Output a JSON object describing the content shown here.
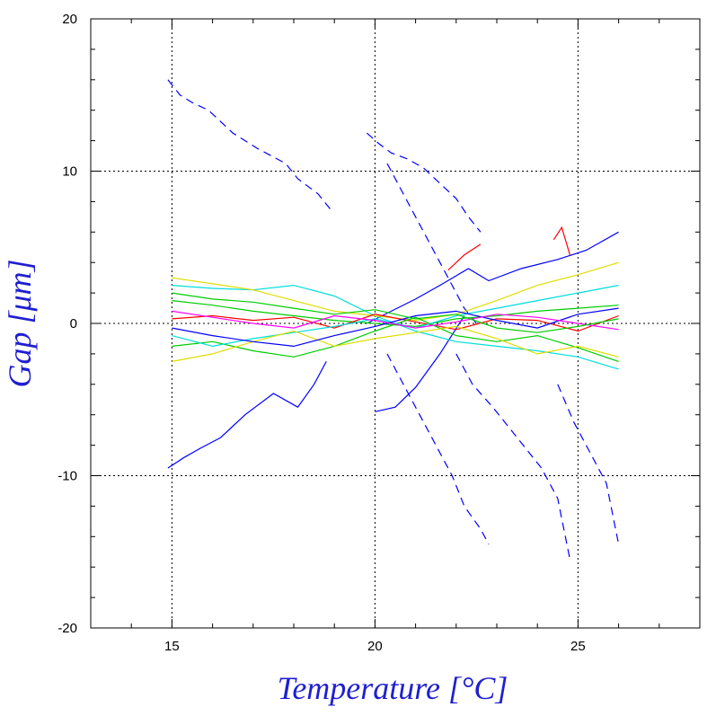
{
  "chart_data": {
    "type": "line",
    "xlabel": "Temperature [°C]",
    "ylabel": "Gap [μm]",
    "xlim": [
      13,
      28
    ],
    "ylim": [
      -20,
      20
    ],
    "x_ticks": [
      15,
      20,
      25
    ],
    "y_ticks": [
      -20,
      -10,
      0,
      10,
      20
    ],
    "x_tick_labels": [
      "15",
      "20",
      "25"
    ],
    "y_tick_labels": [
      "-20",
      "-10",
      "0",
      "10",
      "20"
    ],
    "grid": true,
    "grid_style": "dotted",
    "label_color": "#1f1fd0",
    "series_colors": [
      "#0000ff",
      "#ff0000",
      "#00cc00",
      "#00dddd",
      "#dddd00",
      "#ff00ff"
    ],
    "series": [
      {
        "color": "#0000ff",
        "style": "dashed",
        "x": [
          14.9,
          15.2,
          15.5,
          15.9,
          16.5,
          17.1,
          17.8,
          18.1,
          18.6,
          18.9
        ],
        "y": [
          16,
          15,
          14.5,
          14,
          12.5,
          11.5,
          10.5,
          9.5,
          8.5,
          7.5
        ]
      },
      {
        "color": "#0000ff",
        "style": "dashed",
        "x": [
          19.8,
          20.1,
          20.4,
          20.8,
          21.2,
          21.6,
          22.0,
          22.3,
          22.6
        ],
        "y": [
          12.5,
          11.8,
          11.2,
          10.8,
          10.2,
          9.2,
          8.2,
          7,
          6
        ]
      },
      {
        "color": "#0000ff",
        "style": "dashed",
        "x": [
          20.3,
          20.7,
          21.1,
          21.5,
          21.9,
          22.2,
          22.5
        ],
        "y": [
          10.5,
          8.5,
          6.5,
          4.5,
          2.5,
          1,
          0
        ]
      },
      {
        "color": "#0000ff",
        "style": "solid",
        "x": [
          14.9,
          15.3,
          15.7,
          16.2,
          16.8,
          17.5,
          18.1,
          18.5,
          18.8
        ],
        "y": [
          -9.5,
          -8.8,
          -8.2,
          -7.5,
          -6,
          -4.6,
          -5.5,
          -4,
          -2.5
        ]
      },
      {
        "color": "#0000ff",
        "style": "dashed",
        "x": [
          20.3,
          20.7,
          21.1,
          21.5,
          21.9,
          22.2,
          22.6,
          22.8
        ],
        "y": [
          -2,
          -4,
          -6,
          -8,
          -10,
          -12,
          -13.5,
          -14.5
        ]
      },
      {
        "color": "#0000ff",
        "style": "dashed",
        "x": [
          22.0,
          22.4,
          22.9,
          23.5,
          24.1,
          24.5,
          24.8
        ],
        "y": [
          -2,
          -4,
          -5.5,
          -7.5,
          -9.5,
          -11.5,
          -15.5
        ]
      },
      {
        "color": "#0000ff",
        "style": "dashed",
        "x": [
          24.5,
          24.9,
          25.3,
          25.7,
          26.0
        ],
        "y": [
          -4,
          -6.5,
          -8.5,
          -10.5,
          -14.5
        ]
      },
      {
        "color": "#0000ff",
        "style": "solid",
        "x": [
          19.8,
          20.4,
          21.0,
          21.6,
          22.3,
          22.8,
          23.6,
          24.5,
          25.2,
          26.0
        ],
        "y": [
          0,
          0.8,
          1.6,
          2.5,
          3.6,
          2.8,
          3.6,
          4.2,
          4.8,
          6
        ]
      },
      {
        "color": "#0000ff",
        "style": "solid",
        "x": [
          20.0,
          20.5,
          21.0,
          21.6,
          22.2
        ],
        "y": [
          -5.8,
          -5.5,
          -4.2,
          -2,
          0.5
        ]
      },
      {
        "color": "#ff0000",
        "style": "solid",
        "x": [
          24.4,
          24.6,
          24.8
        ],
        "y": [
          5.5,
          6.3,
          4.5
        ]
      },
      {
        "color": "#ff0000",
        "style": "solid",
        "x": [
          21.8,
          22.2,
          22.6
        ],
        "y": [
          3.5,
          4.5,
          5.2
        ]
      },
      {
        "color": "#00cc00",
        "style": "solid",
        "x": [
          15.0,
          16.0,
          17.0,
          18.0,
          19.0,
          20.0,
          21.0,
          22.0,
          23.0,
          24.0,
          25.0,
          26.0
        ],
        "y": [
          1.5,
          1.2,
          0.8,
          0.5,
          0.2,
          0,
          -0.2,
          0.3,
          0.5,
          0.8,
          1,
          1.2
        ]
      },
      {
        "color": "#00dddd",
        "style": "solid",
        "x": [
          15.0,
          16.0,
          17.0,
          18.0,
          19.0,
          20.0,
          21.0,
          22.0,
          23.0,
          24.0,
          25.0,
          26.0
        ],
        "y": [
          2.5,
          2.3,
          2.2,
          2.5,
          1.8,
          0.5,
          -0.5,
          -1.2,
          -1.5,
          -1.8,
          -2.2,
          -3
        ]
      },
      {
        "color": "#dddd00",
        "style": "solid",
        "x": [
          15.0,
          16.0,
          17.0,
          18.0,
          19.0,
          20.0,
          21.0,
          22.0,
          23.0,
          24.0,
          25.0,
          26.0
        ],
        "y": [
          3,
          2.6,
          2.2,
          1.5,
          0.8,
          0.5,
          0.2,
          0.6,
          1.5,
          2.5,
          3.2,
          4
        ]
      },
      {
        "color": "#ff0000",
        "style": "solid",
        "x": [
          15.0,
          16.0,
          17.0,
          18.0,
          19.0,
          20.0,
          21.0,
          22.0,
          23.0,
          24.0,
          25.0,
          26.0
        ],
        "y": [
          0.3,
          0.5,
          0.2,
          0.4,
          -0.3,
          0.6,
          0.1,
          -0.4,
          0.3,
          0.2,
          -0.5,
          0.5
        ]
      },
      {
        "color": "#00cc00",
        "style": "solid",
        "x": [
          15.0,
          16.0,
          17.0,
          18.0,
          19.0,
          20.0,
          21.0,
          22.0,
          23.0,
          24.0,
          25.0,
          26.0
        ],
        "y": [
          -1.5,
          -1.2,
          -1.8,
          -2.2,
          -1.5,
          -0.5,
          0.4,
          -0.8,
          -1.2,
          -0.8,
          -1.6,
          -2.5
        ]
      },
      {
        "color": "#00dddd",
        "style": "solid",
        "x": [
          15.0,
          16.0,
          17.0,
          18.0,
          19.0,
          20.0,
          21.0,
          22.0,
          23.0,
          24.0,
          25.0,
          26.0
        ],
        "y": [
          -0.8,
          -1.5,
          -1,
          -0.6,
          -0.2,
          0.3,
          -0.3,
          0.5,
          1,
          1.5,
          2,
          2.5
        ]
      },
      {
        "color": "#dddd00",
        "style": "solid",
        "x": [
          15.0,
          16.0,
          17.0,
          18.0,
          19.0,
          20.0,
          21.0,
          22.0,
          23.0,
          24.0,
          25.0,
          26.0
        ],
        "y": [
          -2.5,
          -2,
          -1.2,
          -0.5,
          -1.5,
          -1,
          -0.6,
          -0.2,
          -1,
          -2,
          -1.5,
          -2.2
        ]
      },
      {
        "color": "#0000ff",
        "style": "solid",
        "x": [
          15.0,
          16.0,
          17.0,
          18.0,
          19.0,
          20.0,
          21.0,
          22.0,
          23.0,
          24.0,
          25.0,
          26.0
        ],
        "y": [
          -0.3,
          -0.8,
          -1.2,
          -1.5,
          -0.8,
          -0.2,
          0.5,
          0.8,
          0.2,
          -0.3,
          0.6,
          1
        ]
      },
      {
        "color": "#ff00ff",
        "style": "solid",
        "x": [
          15.0,
          16.0,
          17.0,
          18.0,
          19.0,
          20.0,
          21.0,
          22.0,
          23.0,
          24.0,
          25.0,
          26.0
        ],
        "y": [
          0.8,
          0.4,
          0,
          -0.3,
          0.5,
          0.2,
          -0.3,
          0.1,
          0.6,
          0.4,
          0,
          -0.4
        ]
      },
      {
        "color": "#00cc00",
        "style": "solid",
        "x": [
          15.0,
          16.0,
          17.0,
          18.0,
          19.0,
          20.0,
          21.0,
          22.0,
          23.0,
          24.0,
          25.0,
          26.0
        ],
        "y": [
          2,
          1.6,
          1.4,
          1,
          0.6,
          0.9,
          0.3,
          0.6,
          -0.3,
          -0.6,
          -0.2,
          0.3
        ]
      }
    ]
  }
}
